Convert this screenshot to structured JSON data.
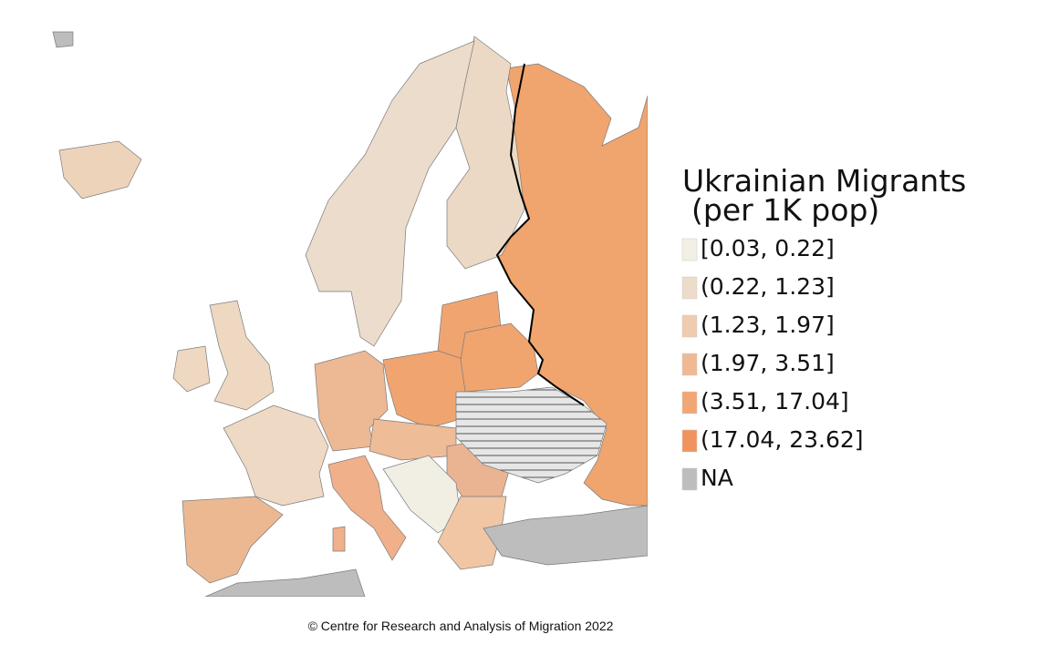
{
  "legend": {
    "title_lines": [
      "Ukrainian Migrants",
      "(per 1K pop)"
    ],
    "entries": [
      {
        "label": "[0.03, 0.22]",
        "color": "#f2efe5"
      },
      {
        "label": "(0.22, 1.23]",
        "color": "#eddcc9"
      },
      {
        "label": "(1.23, 1.97]",
        "color": "#efcbb0"
      },
      {
        "label": "(1.97, 3.51]",
        "color": "#efb993"
      },
      {
        "label": "(3.51, 17.04]",
        "color": "#f1a673"
      },
      {
        "label": "(17.04, 23.62]",
        "color": "#f0935c"
      },
      {
        "label": "NA",
        "color": "#bdbdbd"
      }
    ]
  },
  "caption": "© Centre for Research and Analysis of Migration 2022"
}
